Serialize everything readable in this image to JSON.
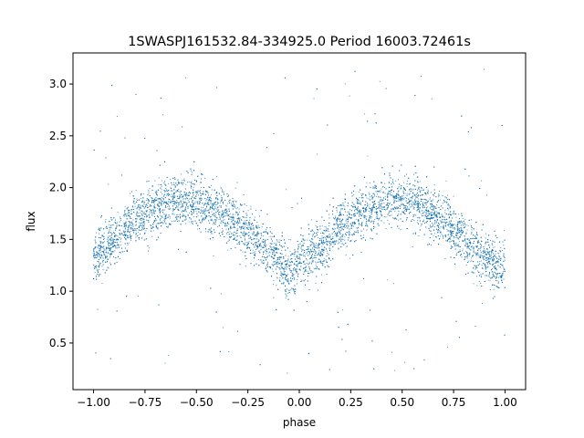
{
  "chart_data": {
    "type": "scatter",
    "title": "1SWASPJ161532.84-334925.0 Period 16003.72461s",
    "xlabel": "phase",
    "ylabel": "flux",
    "xlim": [
      -1.1,
      1.1
    ],
    "ylim": [
      0.05,
      3.3
    ],
    "x_ticks": [
      -1.0,
      -0.75,
      -0.5,
      -0.25,
      0.0,
      0.25,
      0.5,
      0.75,
      1.0
    ],
    "x_tick_labels": [
      "−1.00",
      "−0.75",
      "−0.50",
      "−0.25",
      "0.00",
      "0.25",
      "0.50",
      "0.75",
      "1.00"
    ],
    "y_ticks": [
      0.5,
      1.0,
      1.5,
      2.0,
      2.5,
      3.0
    ],
    "y_tick_labels": [
      "0.5",
      "1.0",
      "1.5",
      "2.0",
      "2.5",
      "3.0"
    ],
    "grid": false,
    "series": [
      {
        "marker_color": "#1f77b4",
        "curve_description": "phase-folded light curve, double-peaked, dense scatter of ~20000 points",
        "x": [
          -1.0,
          -0.9,
          -0.8,
          -0.7,
          -0.6,
          -0.5,
          -0.4,
          -0.3,
          -0.2,
          -0.1,
          -0.05,
          0.0,
          0.1,
          0.2,
          0.3,
          0.4,
          0.5,
          0.6,
          0.7,
          0.8,
          0.9,
          0.95,
          1.0
        ],
        "y": [
          1.3,
          1.5,
          1.7,
          1.8,
          1.88,
          1.85,
          1.78,
          1.65,
          1.48,
          1.3,
          1.2,
          1.25,
          1.4,
          1.62,
          1.78,
          1.86,
          1.88,
          1.82,
          1.68,
          1.5,
          1.32,
          1.25,
          1.25
        ],
        "scatter_sigma": 0.12,
        "outlier_range": [
          0.2,
          3.15
        ]
      }
    ]
  }
}
